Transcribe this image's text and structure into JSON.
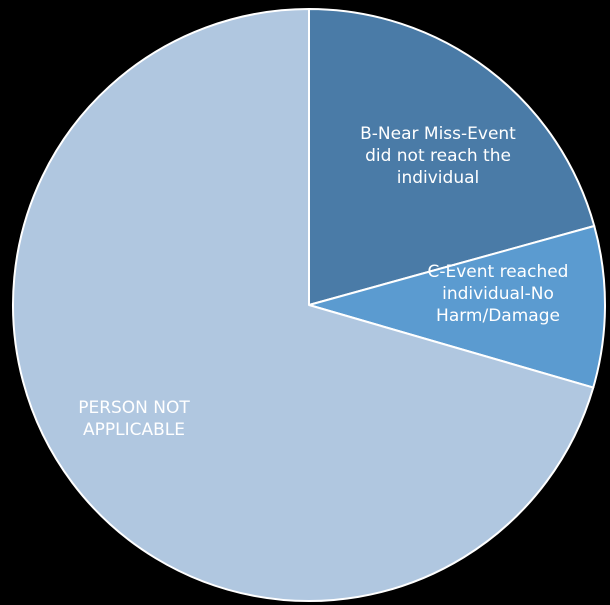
{
  "chart_data": {
    "type": "pie",
    "title": "",
    "slices": [
      {
        "label": [
          "B-Near Miss-Event",
          "did not reach the",
          "individual"
        ],
        "value": 20.7,
        "color": "#4a7ba7"
      },
      {
        "label": [
          "C-Event reached",
          "individual-No",
          "Harm/Damage"
        ],
        "value": 8.8,
        "color": "#5b9bd0"
      },
      {
        "label": [
          "PERSON NOT",
          "APPLICABLE"
        ],
        "value": 70.5,
        "color": "#b0c7e0"
      }
    ],
    "start_angle_deg": 0,
    "direction": "clockwise",
    "stroke_color": "#ffffff"
  }
}
